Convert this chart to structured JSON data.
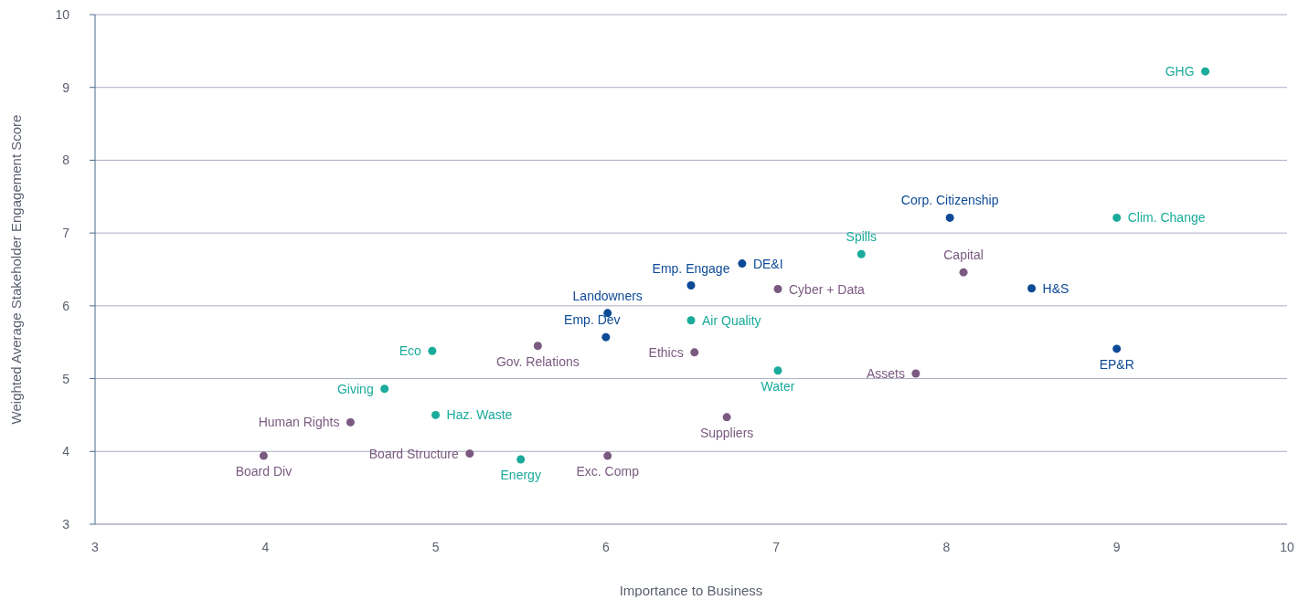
{
  "chart_data": {
    "type": "scatter",
    "xlabel": "Importance to Business",
    "ylabel": "Weighted Average Stakeholder Engagement Score",
    "xlim": [
      3,
      10
    ],
    "xticks": [
      3,
      4,
      5,
      6,
      7,
      8,
      9,
      10
    ],
    "ylim": [
      3,
      10
    ],
    "yticks": [
      3,
      4,
      5,
      6,
      7,
      8,
      9,
      10
    ],
    "grid": "y",
    "marker": "circle",
    "series": [
      {
        "color": "#1aab9b",
        "x": [
          9.52,
          9.0,
          7.5,
          6.5,
          7.01,
          4.98,
          4.7,
          5.0,
          5.5
        ],
        "values": [
          9.22,
          7.21,
          6.71,
          5.8,
          5.11,
          5.38,
          4.86,
          4.5,
          3.89
        ]
      },
      {
        "color": "#0d4a96",
        "x": [
          8.02,
          6.8,
          6.5,
          8.5,
          6.01,
          6.0,
          9.0
        ],
        "values": [
          7.21,
          6.58,
          6.28,
          6.24,
          5.9,
          5.57,
          5.41
        ]
      },
      {
        "color": "#7a5a80",
        "x": [
          8.1,
          7.01,
          5.6,
          6.52,
          7.82,
          6.71,
          4.5,
          5.2,
          3.99,
          6.01
        ],
        "values": [
          6.46,
          6.23,
          5.45,
          5.36,
          5.07,
          4.47,
          4.4,
          3.97,
          3.94,
          3.94
        ]
      }
    ],
    "annotations": [
      {
        "text": "GHG",
        "x": 9.52,
        "y": 9.22
      },
      {
        "text": "Clim. Change",
        "x": 9.0,
        "y": 7.21
      },
      {
        "text": "Spills",
        "x": 7.5,
        "y": 6.71
      },
      {
        "text": "Air Quality",
        "x": 6.5,
        "y": 5.8
      },
      {
        "text": "Water",
        "x": 7.01,
        "y": 5.11
      },
      {
        "text": "Eco",
        "x": 4.98,
        "y": 5.38
      },
      {
        "text": "Giving",
        "x": 4.7,
        "y": 4.86
      },
      {
        "text": "Haz. Waste",
        "x": 5.0,
        "y": 4.5
      },
      {
        "text": "Energy",
        "x": 5.5,
        "y": 3.89
      },
      {
        "text": "Corp. Citizenship",
        "x": 8.02,
        "y": 7.21
      },
      {
        "text": "DE&I",
        "x": 6.8,
        "y": 6.58
      },
      {
        "text": "Emp. Engage",
        "x": 6.5,
        "y": 6.28
      },
      {
        "text": "H&S",
        "x": 8.5,
        "y": 6.24
      },
      {
        "text": "Landowners",
        "x": 6.01,
        "y": 5.9
      },
      {
        "text": "Emp. Dev",
        "x": 6.0,
        "y": 5.57
      },
      {
        "text": "EP&R",
        "x": 9.0,
        "y": 5.41
      },
      {
        "text": "Capital",
        "x": 8.1,
        "y": 6.46
      },
      {
        "text": "Cyber + Data",
        "x": 7.01,
        "y": 6.23
      },
      {
        "text": "Gov. Relations",
        "x": 5.6,
        "y": 5.45
      },
      {
        "text": "Ethics",
        "x": 6.52,
        "y": 5.36
      },
      {
        "text": "Assets",
        "x": 7.82,
        "y": 5.07
      },
      {
        "text": "Suppliers",
        "x": 6.71,
        "y": 4.47
      },
      {
        "text": "Human Rights",
        "x": 4.5,
        "y": 4.4
      },
      {
        "text": "Board Structure",
        "x": 5.2,
        "y": 3.97
      },
      {
        "text": "Board Div",
        "x": 3.99,
        "y": 3.94
      },
      {
        "text": "Exc. Comp",
        "x": 6.01,
        "y": 3.94
      }
    ]
  }
}
